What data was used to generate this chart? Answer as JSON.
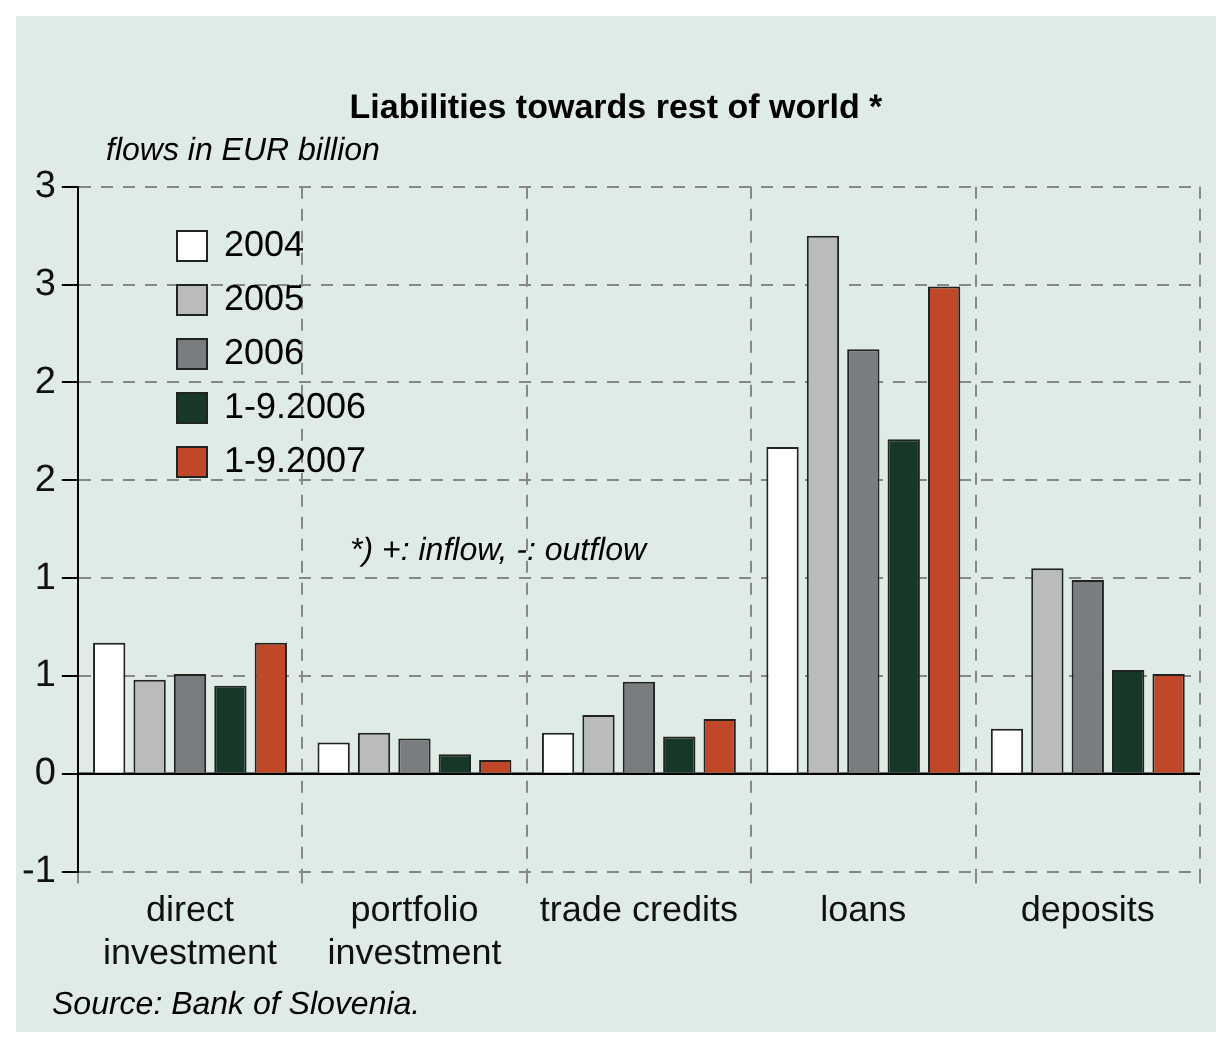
{
  "chart_data": {
    "type": "bar",
    "title": "Liabilities towards rest of world *",
    "ylabel": "flows in EUR billion",
    "categories": [
      "direct investment",
      "portfolio investment",
      "trade credits",
      "loans",
      "deposits"
    ],
    "series": [
      {
        "name": "2004",
        "color": "#ffffff",
        "values": [
          0.67,
          0.16,
          0.21,
          1.67,
          0.23
        ]
      },
      {
        "name": "2005",
        "color": "#b9bbbd",
        "values": [
          0.48,
          0.21,
          0.3,
          2.75,
          1.05
        ]
      },
      {
        "name": "2006",
        "color": "#7a7d80",
        "values": [
          0.51,
          0.18,
          0.47,
          2.17,
          0.99
        ]
      },
      {
        "name": "1-9.2006",
        "color": "#173828",
        "values": [
          0.45,
          0.1,
          0.19,
          1.71,
          0.53
        ]
      },
      {
        "name": "1-9.2007",
        "color": "#c04828",
        "values": [
          0.67,
          0.07,
          0.28,
          2.49,
          0.51
        ]
      }
    ],
    "ylim": [
      -0.5,
      3
    ],
    "yticks": [
      {
        "value": -0.5,
        "label": "-1"
      },
      0,
      {
        "value": 0.5,
        "label": "1"
      },
      1,
      {
        "value": 1.5,
        "label": "2"
      },
      2,
      {
        "value": 2.5,
        "label": "3"
      },
      3
    ],
    "grid": true,
    "legend": "top left",
    "annotations": [
      "*) +: inflow, -: outflow",
      "Source: Bank of Slovenia."
    ]
  }
}
